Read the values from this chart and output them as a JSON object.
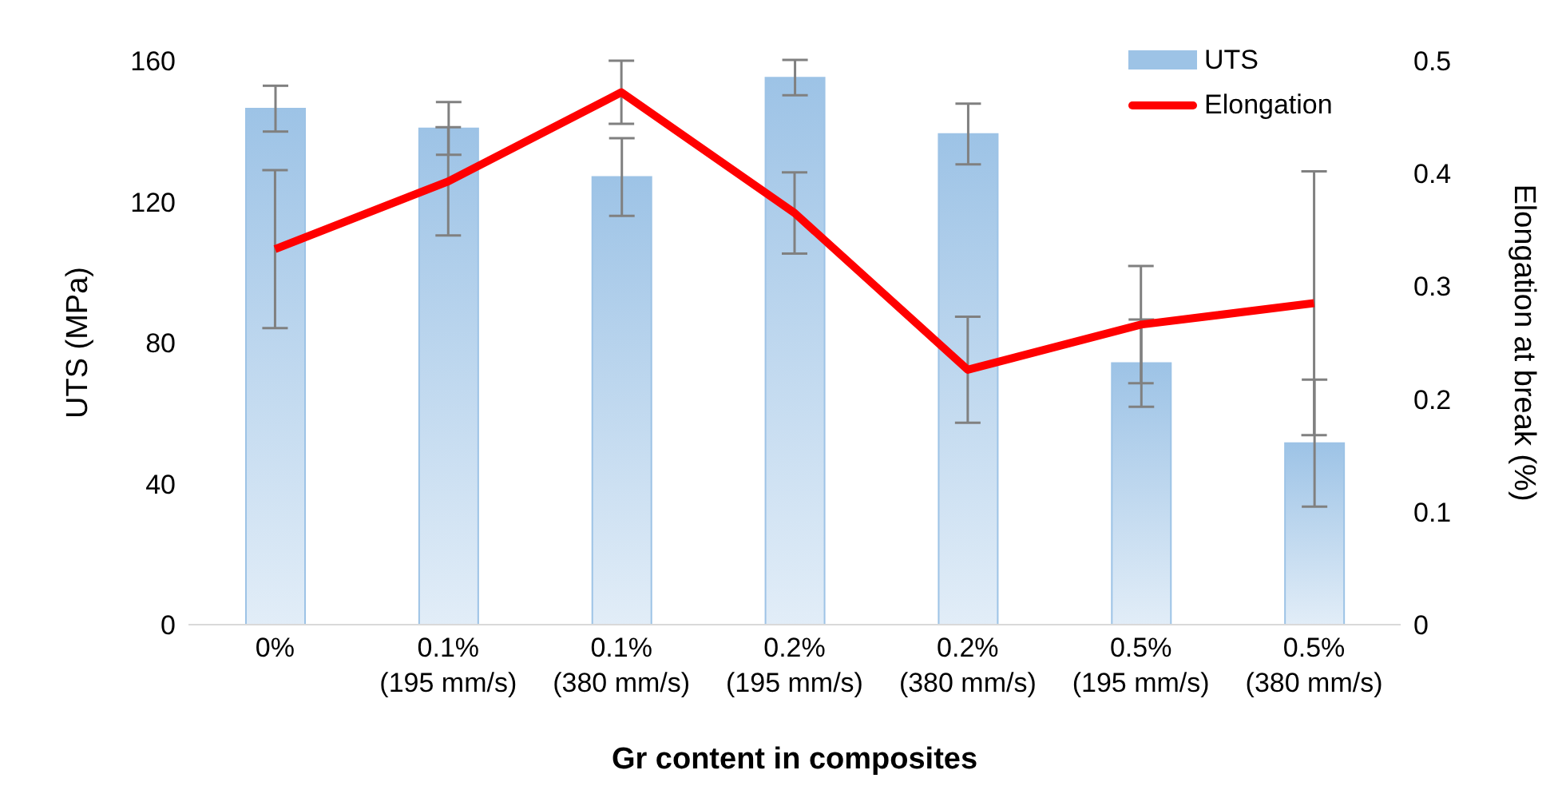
{
  "chart_data": {
    "type": "bar",
    "xlabel": "Gr content in composites",
    "ylabel": "UTS (MPa)",
    "y2label": "Elongation at break (%)",
    "categories": [
      "0%",
      "0.1% (195 mm/s)",
      "0.1% (380 mm/s)",
      "0.2% (195 mm/s)",
      "0.2% (380 mm/s)",
      "0.5% (195 mm/s)",
      "0.5% (380 mm/s)"
    ],
    "series": [
      {
        "name": "UTS",
        "color": "#9dc3e6",
        "values": [
          146.4,
          140.8,
          127,
          155.2,
          139.2,
          74.2,
          51.5
        ],
        "errors": [
          6.5,
          7.5,
          11,
          5,
          8.6,
          12.4,
          18
        ]
      },
      {
        "name": "Elongation",
        "type": "line",
        "axis": "y2",
        "color": "#ff0000",
        "values": [
          0.333,
          0.393,
          0.472,
          0.365,
          0.226,
          0.266,
          0.285
        ],
        "errors": [
          0.07,
          0.048,
          0.028,
          0.036,
          0.047,
          0.052,
          0.117
        ]
      }
    ],
    "ylim": [
      0,
      160
    ],
    "yticks": [
      0,
      40,
      80,
      120,
      160
    ],
    "y2lim": [
      0,
      0.5
    ],
    "y2ticks": [
      0,
      0.1,
      0.2,
      0.3,
      0.4,
      0.5
    ],
    "grid": false,
    "legend": "top right",
    "marker": "none"
  }
}
